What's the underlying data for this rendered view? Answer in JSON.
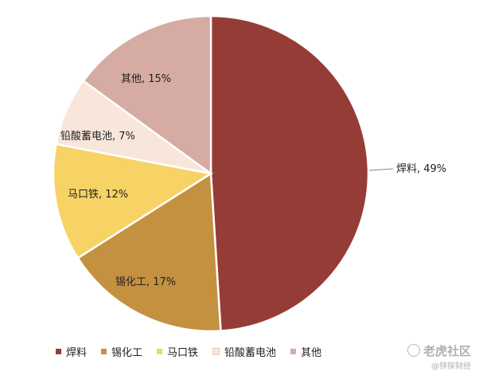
{
  "chart_data": {
    "type": "pie",
    "title": "",
    "categories": [
      "焊料",
      "锡化工",
      "马口铁",
      "铅酸蓄电池",
      "其他"
    ],
    "values": [
      49,
      17,
      12,
      7,
      15
    ],
    "labels": [
      "焊料, 49%",
      "锡化工, 17%",
      "马口铁, 12%",
      "铅酸蓄电池, 7%",
      "其他, 15%"
    ],
    "colors": [
      "#963c36",
      "#c49140",
      "#f7d365",
      "#f8e6da",
      "#d6aba4"
    ],
    "legend_position": "bottom",
    "start_angle_deg": 0,
    "direction": "clockwise"
  },
  "watermark": {
    "main": "老虎社区",
    "sub": "@锌探财经"
  }
}
